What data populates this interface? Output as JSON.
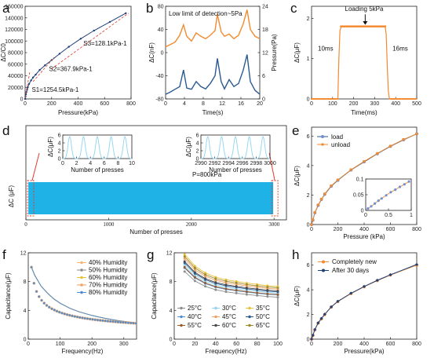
{
  "colors": {
    "orange": "#f28b30",
    "blue": "#2b5a8f",
    "navy": "#1f3f7a",
    "red": "#e33b2a",
    "cyan": "#1fb2e6"
  },
  "chart_data": [
    {
      "id": "a",
      "type": "line",
      "panel": "a",
      "xlabel": "Pressure(kPa)",
      "ylabel": "ΔC/C0",
      "xlim": [
        0,
        800
      ],
      "ylim": [
        0,
        160000
      ],
      "xticks": [
        0,
        200,
        400,
        600,
        800
      ],
      "yticks": [
        0,
        20000,
        40000,
        60000,
        80000,
        100000,
        120000,
        140000,
        160000
      ],
      "ytick_labels": [
        "0",
        "20000",
        "40000",
        "60000",
        "80000",
        "100000",
        "120000",
        "140000",
        "160000"
      ],
      "series": [
        {
          "x": [
            0,
            3,
            6,
            10,
            15,
            20,
            30,
            45,
            60,
            80,
            110,
            150,
            200,
            260,
            330,
            420,
            520,
            640,
            760
          ],
          "y": [
            0,
            4000,
            8000,
            12000,
            16000,
            20000,
            26000,
            32000,
            37000,
            42000,
            50000,
            58000,
            67000,
            78000,
            90000,
            104000,
            118000,
            133000,
            148000
          ]
        }
      ],
      "annotations": [
        "S3=128.1kPa-1",
        "S2=367.9kPa-1",
        "S1=1254.5kPa-1"
      ]
    },
    {
      "id": "b",
      "type": "line",
      "panel": "b",
      "title": "Low limit of detection~5Pa",
      "xlabel": "Time(s)",
      "ylabel": "ΔC(nF)",
      "y2label": "Pressure(Pa)",
      "xlim": [
        0,
        20
      ],
      "ylim": [
        -80,
        80
      ],
      "y2lim": [
        0,
        24
      ],
      "xticks": [
        0,
        4,
        8,
        12,
        16,
        20
      ],
      "yticks": [
        -80,
        -40,
        0,
        40,
        80
      ],
      "y2ticks": [
        0,
        6,
        12,
        18,
        24
      ],
      "series": [
        {
          "x": [
            0,
            1,
            2,
            3,
            3.8,
            4.5,
            5.5,
            6.5,
            7.5,
            8.5,
            9.5,
            10.5,
            11,
            11.8,
            12.5,
            13.5,
            14.5,
            15.5,
            16.5,
            17.3,
            18,
            19,
            20
          ],
          "y": [
            10,
            14,
            18,
            30,
            48,
            28,
            20,
            34,
            28,
            24,
            30,
            38,
            66,
            36,
            28,
            32,
            24,
            30,
            50,
            74,
            40,
            28,
            24
          ]
        },
        {
          "x": [
            0,
            1,
            2,
            3,
            3.8,
            4.5,
            5.5,
            6.5,
            7.5,
            8.5,
            9.5,
            10.5,
            11,
            11.8,
            12.5,
            13.5,
            14.5,
            15.5,
            16.5,
            17.3,
            18,
            19,
            20
          ],
          "y": [
            1.2,
            1.8,
            2.5,
            3.2,
            7.5,
            2.8,
            2.5,
            4.5,
            3.2,
            2.6,
            4,
            6,
            10.5,
            4.5,
            2.6,
            5,
            3.2,
            4,
            7.5,
            11.5,
            4.5,
            2.2,
            1.2
          ]
        }
      ]
    },
    {
      "id": "c",
      "type": "line",
      "panel": "c",
      "xlabel": "Time(ms)",
      "ylabel": "ΔC(μF)",
      "xlim": [
        0,
        500
      ],
      "ylim": [
        0,
        2
      ],
      "xticks": [
        0,
        100,
        200,
        300,
        400,
        500
      ],
      "yticks": [
        0,
        1,
        2
      ],
      "series": [
        {
          "x": [
            0,
            125,
            130,
            135,
            140,
            150,
            200,
            250,
            300,
            350,
            355,
            360,
            365,
            370,
            500
          ],
          "y": [
            0,
            0,
            1.0,
            1.7,
            1.78,
            1.8,
            1.8,
            1.8,
            1.8,
            1.8,
            1.6,
            0.8,
            0.2,
            0,
            0
          ]
        }
      ],
      "annotations": [
        "Loading 5kPa",
        "10ms",
        "16ms"
      ]
    },
    {
      "id": "d",
      "type": "line",
      "panel": "d",
      "xlabel": "Number of presses",
      "ylabel": "ΔC (μF)",
      "xlim": [
        0,
        3150
      ],
      "xticks": [
        0,
        1000,
        2000,
        3000
      ],
      "annotations": [
        "P=800kPa"
      ],
      "insets": [
        {
          "xlabel": "Number of presses",
          "ylabel": "ΔC(μF)",
          "xlim": [
            0,
            10
          ],
          "ylim": [
            0,
            6
          ],
          "xticks": [
            0,
            2,
            4,
            6,
            8,
            10
          ],
          "yticks": [
            0,
            2,
            4,
            6
          ],
          "peaks": [
            1,
            3,
            5,
            7,
            9
          ]
        },
        {
          "xlabel": "Number of presses",
          "ylabel": "ΔC(μF)",
          "xlim": [
            2990,
            3000
          ],
          "ylim": [
            0,
            6
          ],
          "xticks": [
            2990,
            2992,
            2994,
            2996,
            2998,
            3000
          ],
          "yticks": [
            0,
            2,
            4,
            6
          ],
          "peaks": [
            2991,
            2993,
            2995,
            2997,
            2999
          ]
        }
      ]
    },
    {
      "id": "e",
      "type": "line",
      "panel": "e",
      "xlabel": "Pressure (kPa)",
      "ylabel": "ΔC(μF)",
      "xlim": [
        0,
        800
      ],
      "ylim": [
        0,
        6
      ],
      "xticks": [
        0,
        200,
        400,
        600,
        800
      ],
      "yticks": [
        0,
        2,
        4,
        6
      ],
      "series": [
        {
          "name": "load",
          "x": [
            0,
            10,
            25,
            50,
            75,
            100,
            150,
            200,
            300,
            400,
            500,
            600,
            700,
            800
          ],
          "y": [
            0,
            0.3,
            0.8,
            1.3,
            1.7,
            2.05,
            2.6,
            3.0,
            3.7,
            4.25,
            4.8,
            5.3,
            5.75,
            6.15
          ]
        },
        {
          "name": "unload",
          "x": [
            0,
            10,
            25,
            50,
            75,
            100,
            150,
            200,
            300,
            400,
            500,
            600,
            700,
            800
          ],
          "y": [
            0,
            0.32,
            0.82,
            1.33,
            1.72,
            2.08,
            2.63,
            3.03,
            3.72,
            4.28,
            4.82,
            5.32,
            5.77,
            6.15
          ]
        }
      ],
      "inset": {
        "xlim": [
          0,
          1
        ],
        "ylim": [
          0,
          0.1
        ],
        "xticks": [
          0,
          0.5,
          1
        ],
        "yticks": [
          0,
          0.05,
          0.1
        ],
        "x": [
          0.05,
          0.12,
          0.2,
          0.28,
          0.35,
          0.45,
          0.55,
          0.65,
          0.75,
          0.85,
          0.95
        ],
        "y": [
          0.006,
          0.013,
          0.022,
          0.031,
          0.038,
          0.048,
          0.058,
          0.066,
          0.075,
          0.083,
          0.092
        ]
      }
    },
    {
      "id": "f",
      "type": "line",
      "panel": "f",
      "xlabel": "Frequency(Hz)",
      "ylabel": "Capacitance(μF)",
      "xlim": [
        0,
        340
      ],
      "ylim": [
        0,
        12
      ],
      "xticks": [
        0,
        100,
        200,
        300
      ],
      "yticks": [
        0,
        4,
        8,
        12
      ],
      "series": [
        {
          "name": "40% Humidity",
          "color": "#f5b87a"
        },
        {
          "name": "50% Humidity",
          "color": "#8c8c8c"
        },
        {
          "name": "60% Humidity",
          "color": "#e6c23a"
        },
        {
          "name": "70% Humidity",
          "color": "#f0a060"
        },
        {
          "name": "80% Humidity",
          "color": "#4f8fd0"
        }
      ],
      "curve": {
        "x": [
          10,
          20,
          40,
          60,
          80,
          100,
          130,
          160,
          200,
          240,
          280,
          320,
          340
        ],
        "y": [
          10.0,
          8.9,
          7.4,
          6.4,
          5.6,
          5.0,
          4.3,
          3.8,
          3.3,
          2.9,
          2.6,
          2.35,
          2.25
        ]
      }
    },
    {
      "id": "g",
      "type": "line",
      "panel": "g",
      "xlabel": "Frequency(Hz)",
      "ylabel": "Capacitance(μF)",
      "xlim": [
        0,
        100
      ],
      "ylim": [
        0,
        12
      ],
      "xticks": [
        0,
        20,
        40,
        60,
        80,
        100
      ],
      "yticks": [
        0,
        4,
        8,
        12
      ],
      "series": [
        {
          "name": "25°C",
          "color": "#8c8c8c",
          "y0": 9.4
        },
        {
          "name": "30°C",
          "color": "#8fd3f0",
          "y0": 10.3
        },
        {
          "name": "35°C",
          "color": "#e6c23a",
          "y0": 11.8
        },
        {
          "name": "40°C",
          "color": "#4f8fd0",
          "y0": 9.9
        },
        {
          "name": "45°C",
          "color": "#f0a060",
          "y0": 11.2
        },
        {
          "name": "50°C",
          "color": "#2b5a8f",
          "y0": 10.6
        },
        {
          "name": "55°C",
          "color": "#9a5a2a",
          "y0": 10.0
        },
        {
          "name": "60°C",
          "color": "#4a4a4a",
          "y0": 10.8
        },
        {
          "name": "65°C",
          "color": "#a08a2a",
          "y0": 11.5
        }
      ],
      "x": [
        10,
        20,
        30,
        40,
        50,
        60,
        70,
        80,
        90,
        100
      ],
      "shape": [
        1,
        0.86,
        0.78,
        0.73,
        0.7,
        0.68,
        0.66,
        0.645,
        0.63,
        0.62
      ]
    },
    {
      "id": "h",
      "type": "line",
      "panel": "h",
      "xlabel": "Pressure(kPa)",
      "ylabel": "ΔC(μF)",
      "xlim": [
        0,
        800
      ],
      "ylim": [
        0,
        7
      ],
      "xticks": [
        0,
        200,
        400,
        600,
        800
      ],
      "yticks": [
        0,
        2,
        4,
        6
      ],
      "series": [
        {
          "name": "Completely new",
          "color": "#f28b30",
          "x": [
            0,
            10,
            25,
            50,
            75,
            100,
            150,
            200,
            300,
            400,
            500,
            600,
            800
          ],
          "y": [
            0,
            0.3,
            0.75,
            1.3,
            1.65,
            2.0,
            2.6,
            3.05,
            3.7,
            4.25,
            4.75,
            5.2,
            6.0
          ]
        },
        {
          "name": "After 30 days",
          "color": "#1f3f7a",
          "x": [
            0,
            10,
            25,
            50,
            75,
            100,
            150,
            200,
            300,
            400,
            500,
            600,
            800
          ],
          "y": [
            0,
            0.32,
            0.78,
            1.32,
            1.68,
            2.02,
            2.62,
            3.07,
            3.72,
            4.27,
            4.77,
            5.22,
            6.05
          ]
        }
      ]
    }
  ]
}
